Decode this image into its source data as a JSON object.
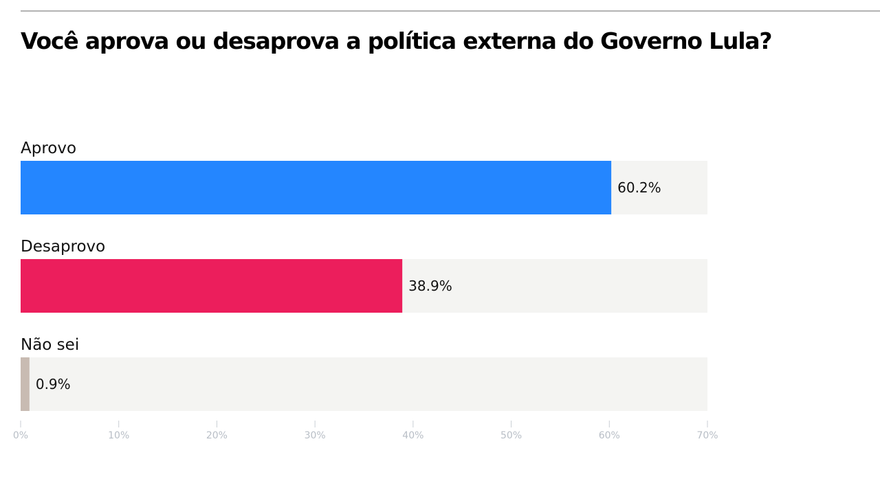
{
  "chart_data": {
    "type": "bar",
    "orientation": "horizontal",
    "title": "Você aprova ou desaprova a política externa do Governo Lula?",
    "categories": [
      "Aprovo",
      "Desaprovo",
      "Não sei"
    ],
    "values": [
      60.2,
      38.9,
      0.9
    ],
    "value_labels": [
      "60.2%",
      "38.9%",
      "0.9%"
    ],
    "colors": [
      "#2486ff",
      "#ec1e5c",
      "#c8bbb2"
    ],
    "track_color": "#f4f4f2",
    "xlim": [
      0,
      70
    ],
    "x_ticks": [
      0,
      10,
      20,
      30,
      40,
      50,
      60,
      70
    ],
    "x_tick_labels": [
      "0%",
      "10%",
      "20%",
      "30%",
      "40%",
      "50%",
      "60%",
      "70%"
    ],
    "xlabel": "",
    "ylabel": "",
    "grid": false,
    "legend": "none"
  }
}
